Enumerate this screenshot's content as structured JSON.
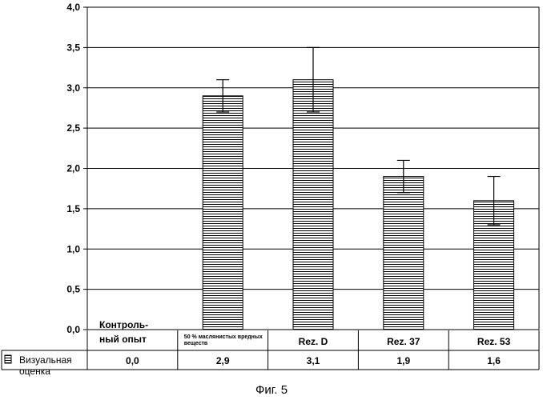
{
  "chart_data": {
    "type": "bar",
    "categories": [
      [
        "Контроль-",
        "ный опыт"
      ],
      [
        "50 % маслянистых вредных",
        "веществ"
      ],
      [
        "Rez. D"
      ],
      [
        "Rez. 37"
      ],
      [
        "Rez. 53"
      ]
    ],
    "series": [
      {
        "name": "Визуальная оценка",
        "values": [
          0.0,
          2.9,
          3.1,
          1.9,
          1.6
        ],
        "value_labels": [
          "0,0",
          "2,9",
          "3,1",
          "1,9",
          "1,6"
        ],
        "error": [
          0,
          0.2,
          0.4,
          0.2,
          0.3
        ]
      }
    ],
    "ylim": [
      0,
      4
    ],
    "yticks": [
      "0,0",
      "0,5",
      "1,0",
      "1,5",
      "2,0",
      "2,5",
      "3,0",
      "3,5",
      "4,0"
    ],
    "grid": true,
    "legend_label": [
      "Визуальная",
      "оценка"
    ],
    "caption": "Фиг. 5"
  }
}
